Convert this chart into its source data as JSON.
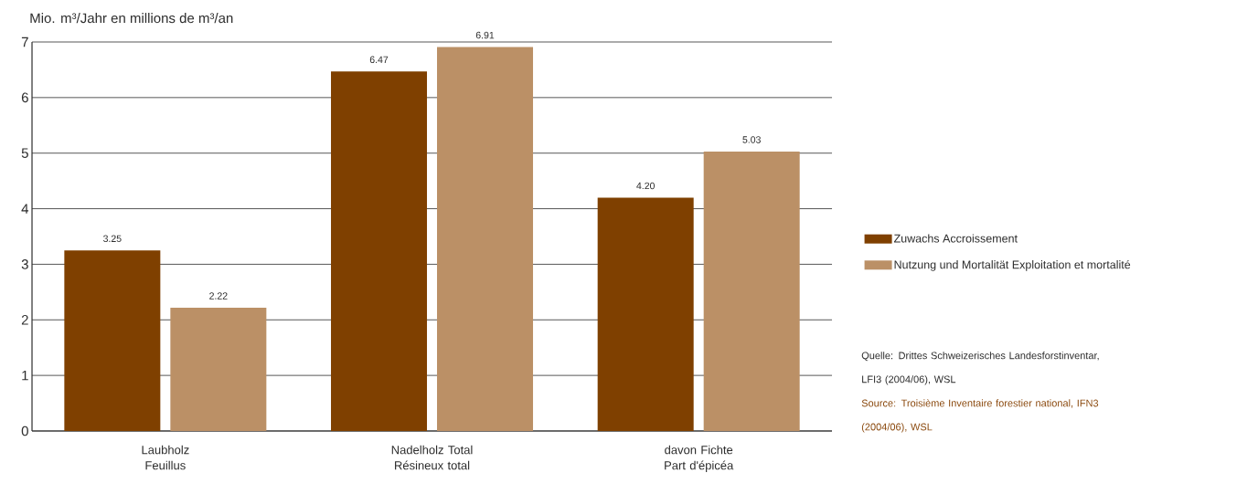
{
  "chart_data": {
    "type": "bar",
    "ylabel": "Mio. m³/Jahr  en millions de m³/an",
    "categories": [
      "Laubholz Feuillus",
      "Nadelholz Total Résineux total",
      "davon Fichte Part d'épicéa"
    ],
    "series": [
      {
        "name": "Zuwachs  Accroissement",
        "color": "#7f4000",
        "values": [
          3.25,
          6.47,
          4.2
        ],
        "value_labels": [
          "3.25",
          "6.47",
          "4.20"
        ]
      },
      {
        "name": "Nutzung und Mortalität  Exploitation et mortalité",
        "color": "#bb9066",
        "values": [
          2.22,
          6.91,
          5.03
        ],
        "value_labels": [
          "2.22",
          "6.91",
          "5.03"
        ]
      }
    ],
    "ylim": [
      0,
      7
    ],
    "yticks": [
      0,
      1,
      2,
      3,
      4,
      5,
      6,
      7
    ],
    "grid": "y",
    "legend": "right",
    "annotations": [
      "Quelle: Drittes Schweizerisches Landesforstinventar, LFI3 (2004/06), WSL",
      "Source: Troisième Inventaire forestier national, IFN3 (2004/06), WSL"
    ]
  }
}
